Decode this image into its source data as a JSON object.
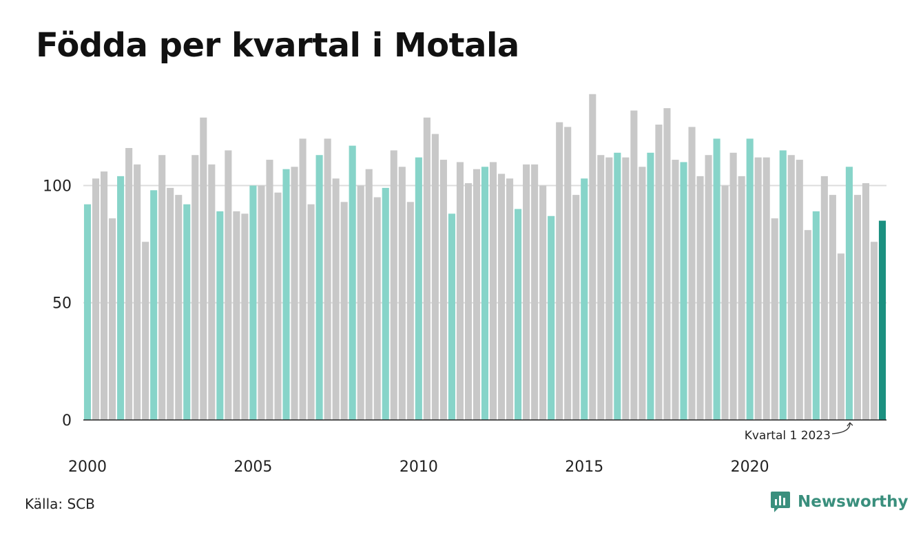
{
  "title": "Födda per kvartal i Motala",
  "source": "Källa: SCB",
  "brand": {
    "name": "Newsworthy",
    "icon": "newsworthy-logo-icon"
  },
  "colors": {
    "highlight": "#87d4c9",
    "other": "#c8c8c8",
    "latest": "#1b9080",
    "brand": "#3a8f7d"
  },
  "chart_data": {
    "type": "bar",
    "title": "Födda per kvartal i Motala",
    "xlabel": "",
    "ylabel": "",
    "ylim": [
      0,
      140
    ],
    "yticks": [
      0,
      50,
      100
    ],
    "xticks": [
      "2000",
      "2005",
      "2010",
      "2015",
      "2020"
    ],
    "grid": true,
    "highlighted_quarter": 1,
    "annotation": "Kvartal 1 2023",
    "categories": [
      "2000 Q1",
      "2000 Q2",
      "2000 Q3",
      "2000 Q4",
      "2001 Q1",
      "2001 Q2",
      "2001 Q3",
      "2001 Q4",
      "2002 Q1",
      "2002 Q2",
      "2002 Q3",
      "2002 Q4",
      "2003 Q1",
      "2003 Q2",
      "2003 Q3",
      "2003 Q4",
      "2004 Q1",
      "2004 Q2",
      "2004 Q3",
      "2004 Q4",
      "2005 Q1",
      "2005 Q2",
      "2005 Q3",
      "2005 Q4",
      "2006 Q1",
      "2006 Q2",
      "2006 Q3",
      "2006 Q4",
      "2007 Q1",
      "2007 Q2",
      "2007 Q3",
      "2007 Q4",
      "2008 Q1",
      "2008 Q2",
      "2008 Q3",
      "2008 Q4",
      "2009 Q1",
      "2009 Q2",
      "2009 Q3",
      "2009 Q4",
      "2010 Q1",
      "2010 Q2",
      "2010 Q3",
      "2010 Q4",
      "2011 Q1",
      "2011 Q2",
      "2011 Q3",
      "2011 Q4",
      "2012 Q1",
      "2012 Q2",
      "2012 Q3",
      "2012 Q4",
      "2013 Q1",
      "2013 Q2",
      "2013 Q3",
      "2013 Q4",
      "2014 Q1",
      "2014 Q2",
      "2014 Q3",
      "2014 Q4",
      "2015 Q1",
      "2015 Q2",
      "2015 Q3",
      "2015 Q4",
      "2016 Q1",
      "2016 Q2",
      "2016 Q3",
      "2016 Q4",
      "2017 Q1",
      "2017 Q2",
      "2017 Q3",
      "2017 Q4",
      "2018 Q1",
      "2018 Q2",
      "2018 Q3",
      "2018 Q4",
      "2019 Q1",
      "2019 Q2",
      "2019 Q3",
      "2019 Q4",
      "2020 Q1",
      "2020 Q2",
      "2020 Q3",
      "2020 Q4",
      "2021 Q1",
      "2021 Q2",
      "2021 Q3",
      "2021 Q4",
      "2022 Q1",
      "2022 Q2",
      "2022 Q3",
      "2022 Q4",
      "2023 Q1",
      "2023 Q2",
      "2023 Q3",
      "2023 Q4",
      "2024 Q1"
    ],
    "values": [
      92,
      103,
      106,
      86,
      104,
      116,
      109,
      76,
      98,
      113,
      99,
      96,
      92,
      113,
      129,
      109,
      89,
      115,
      89,
      88,
      100,
      100,
      111,
      97,
      107,
      108,
      120,
      92,
      113,
      120,
      103,
      93,
      117,
      100,
      107,
      95,
      99,
      115,
      108,
      93,
      112,
      129,
      122,
      111,
      88,
      110,
      101,
      107,
      108,
      110,
      105,
      103,
      90,
      109,
      109,
      100,
      87,
      127,
      125,
      96,
      103,
      139,
      113,
      112,
      114,
      112,
      132,
      108,
      114,
      126,
      133,
      111,
      110,
      125,
      104,
      113,
      120,
      100,
      114,
      104,
      120,
      112,
      112,
      86,
      115,
      113,
      111,
      81,
      89,
      104,
      96,
      71,
      108,
      96,
      101,
      76,
      85
    ]
  }
}
